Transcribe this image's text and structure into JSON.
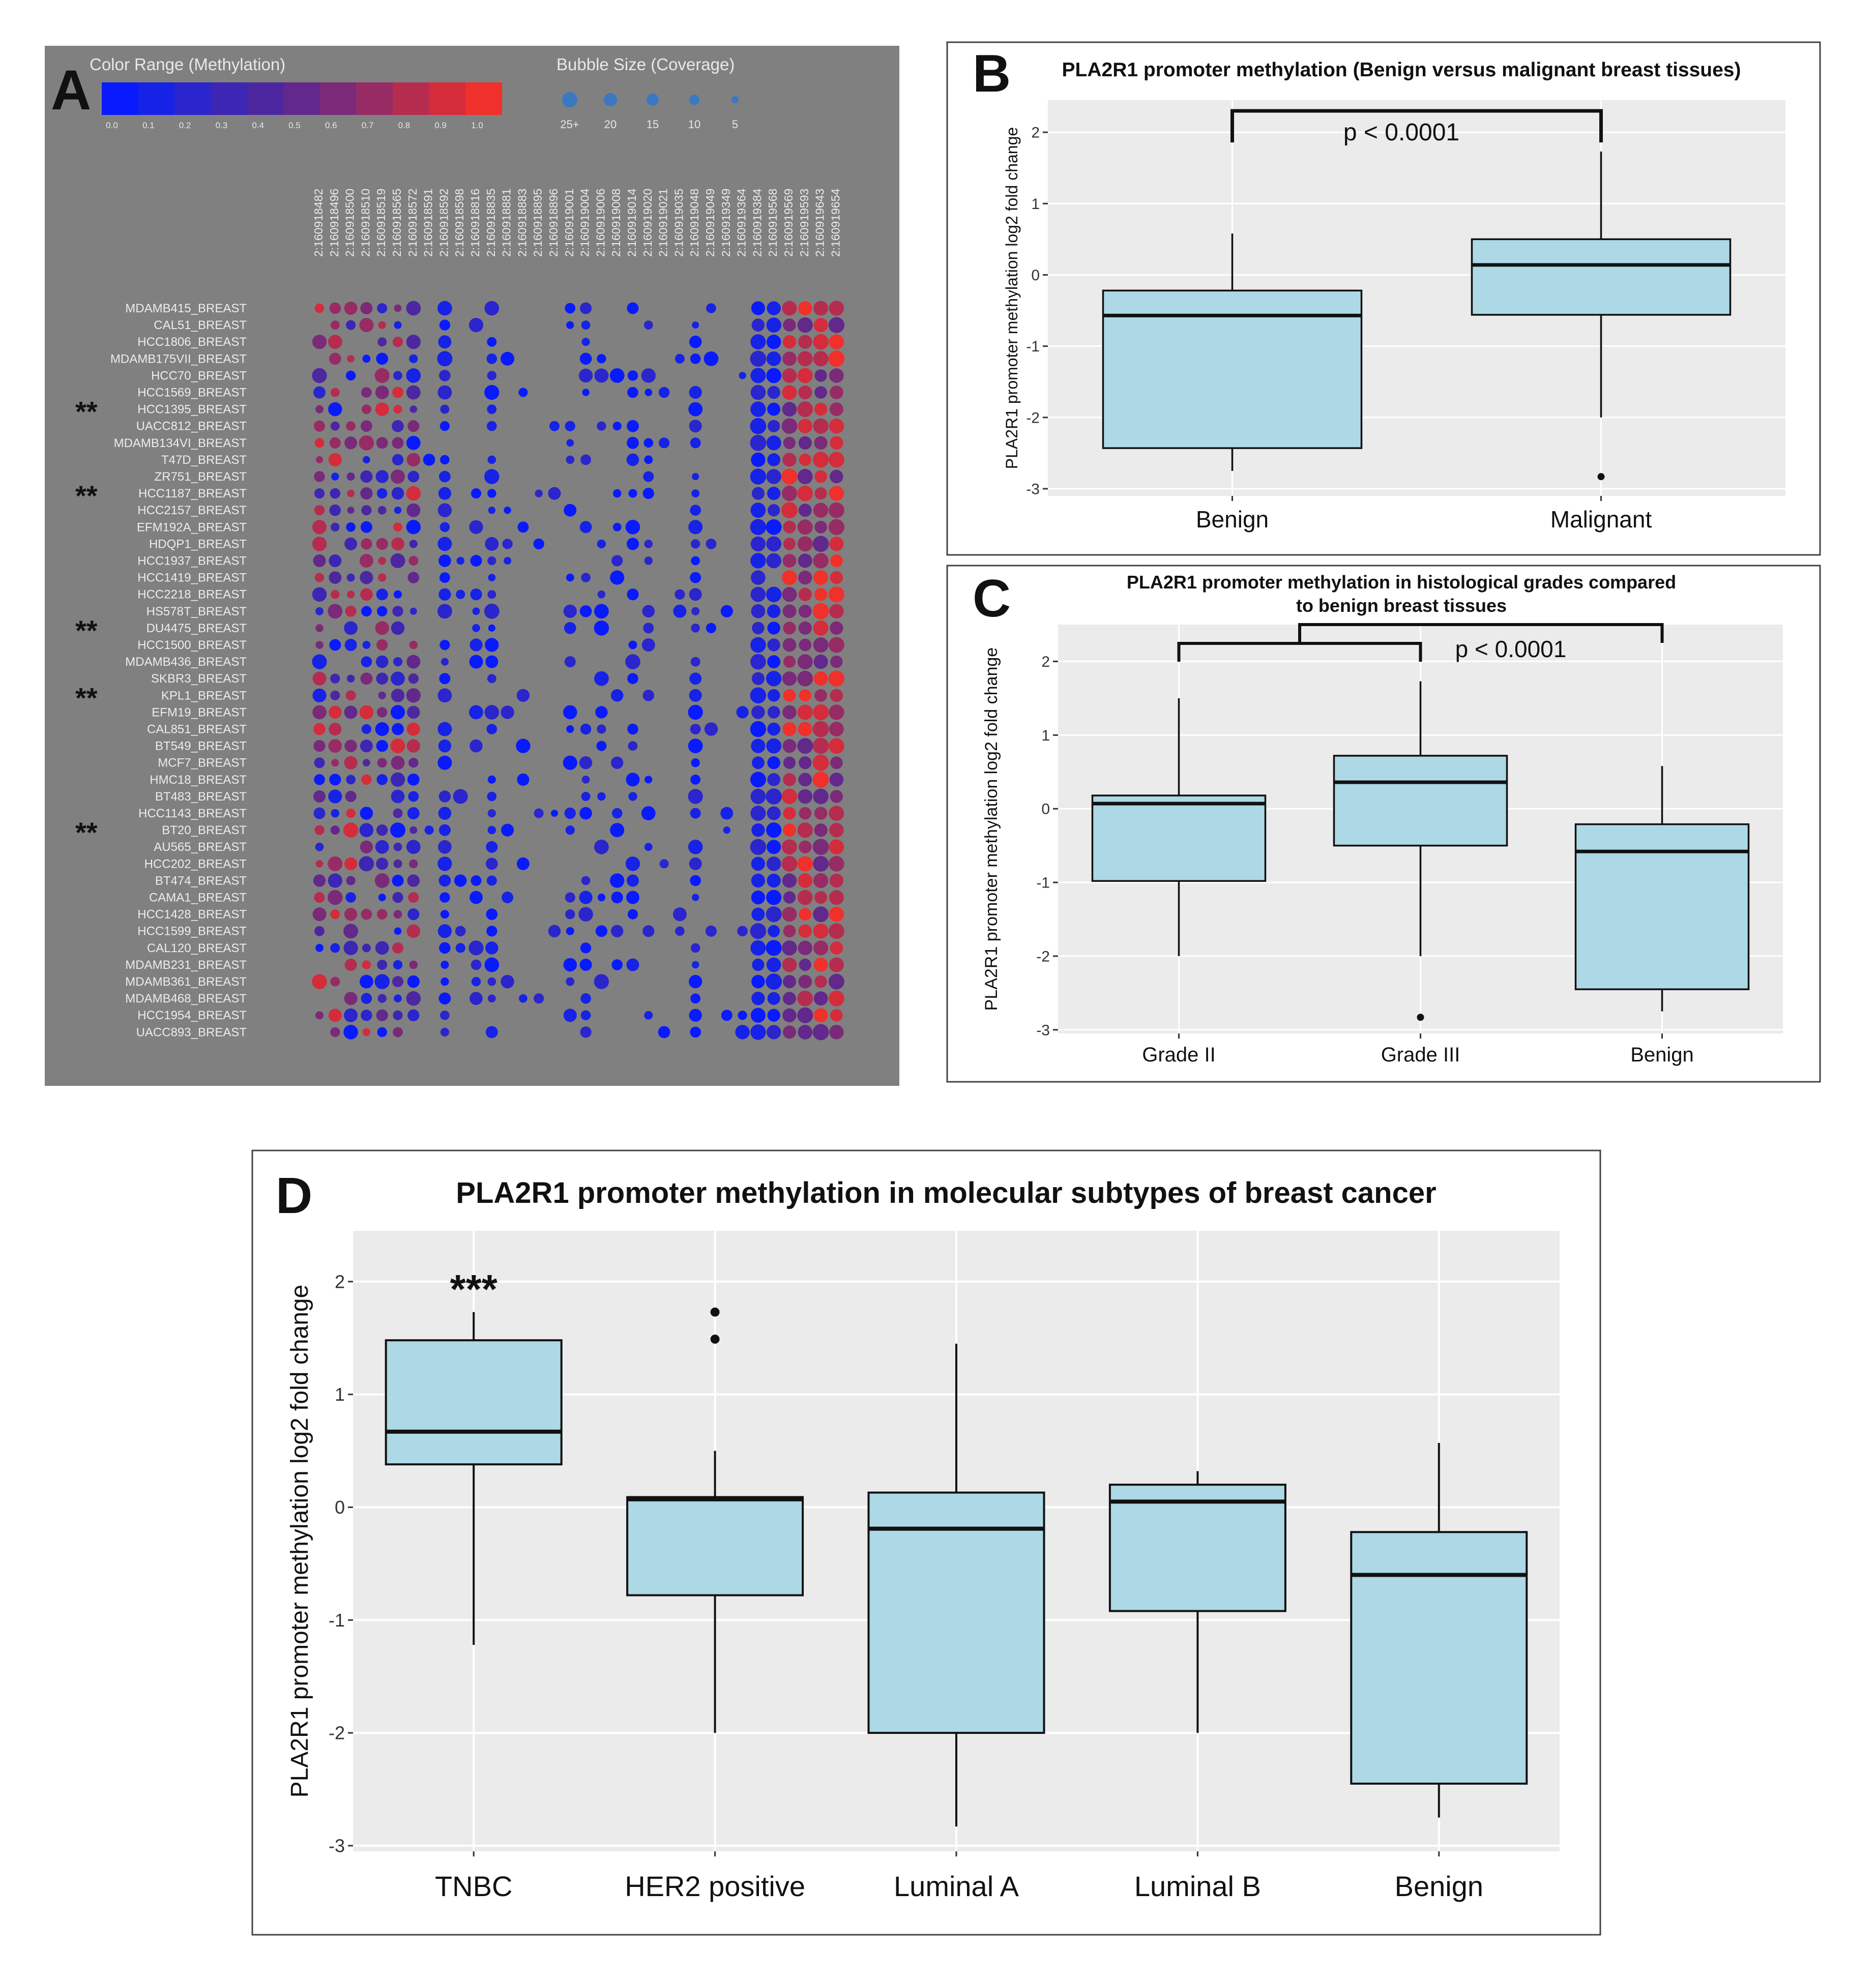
{
  "panel_labels": {
    "A": "A",
    "B": "B",
    "C": "C",
    "D": "D"
  },
  "panel_a": {
    "color_range_title": "Color Range (Methylation)",
    "color_ticks": [
      "0.0",
      "0.1",
      "0.2",
      "0.3",
      "0.4",
      "0.5",
      "0.6",
      "0.7",
      "0.8",
      "0.9",
      "1.0"
    ],
    "color_scale": [
      "#0a1aff",
      "#1622e6",
      "#2a25cc",
      "#3c26b3",
      "#4d27a0",
      "#62288c",
      "#7a2a78",
      "#972c64",
      "#b52c4f",
      "#d42c3b",
      "#f0302a"
    ],
    "bubble_title": "Bubble Size (Coverage)",
    "bubble_labels": [
      "25+",
      "20",
      "15",
      "10",
      "5"
    ],
    "marker": "**"
  },
  "chart_data": [
    {
      "panel": "A",
      "type": "heatmap",
      "title": "Color Range (Methylation)",
      "columns": [
        "2:160918482",
        "2:160918496",
        "2:160918500",
        "2:160918510",
        "2:160918519",
        "2:160918565",
        "2:160918572",
        "2:160918591",
        "2:160918592",
        "2:160918598",
        "2:160918816",
        "2:160918835",
        "2:160918881",
        "2:160918883",
        "2:160918895",
        "2:160918896",
        "2:160919001",
        "2:160919004",
        "2:160919006",
        "2:160919008",
        "2:160919014",
        "2:160919020",
        "2:160919021",
        "2:160919035",
        "2:160919048",
        "2:160919049",
        "2:160919349",
        "2:160919364",
        "2:160919384",
        "2:160919568",
        "2:160919569",
        "2:160919593",
        "2:160919643",
        "2:160919654"
      ],
      "rows": [
        "MDAMB415_BREAST",
        "CAL51_BREAST",
        "HCC1806_BREAST",
        "MDAMB175VII_BREAST",
        "HCC70_BREAST",
        "HCC1569_BREAST",
        "HCC1395_BREAST",
        "UACC812_BREAST",
        "MDAMB134VI_BREAST",
        "T47D_BREAST",
        "ZR751_BREAST",
        "HCC1187_BREAST",
        "HCC2157_BREAST",
        "EFM192A_BREAST",
        "HDQP1_BREAST",
        "HCC1937_BREAST",
        "HCC1419_BREAST",
        "HCC2218_BREAST",
        "HS578T_BREAST",
        "DU4475_BREAST",
        "HCC1500_BREAST",
        "MDAMB436_BREAST",
        "SKBR3_BREAST",
        "KPL1_BREAST",
        "EFM19_BREAST",
        "CAL851_BREAST",
        "BT549_BREAST",
        "MCF7_BREAST",
        "HMC18_BREAST",
        "BT483_BREAST",
        "HCC1143_BREAST",
        "BT20_BREAST",
        "AU565_BREAST",
        "HCC202_BREAST",
        "BT474_BREAST",
        "CAMA1_BREAST",
        "HCC1428_BREAST",
        "HCC1599_BREAST",
        "CAL120_BREAST",
        "MDAMB231_BREAST",
        "MDAMB361_BREAST",
        "MDAMB468_BREAST",
        "HCC1954_BREAST",
        "UACC893_BREAST"
      ],
      "marked_rows": [
        "HCC1395_BREAST",
        "HCC1187_BREAST",
        "DU4475_BREAST",
        "KPL1_BREAST",
        "BT20_BREAST"
      ],
      "value_range": [
        0,
        1
      ]
    },
    {
      "panel": "B",
      "type": "box",
      "title": "PLA2R1 promoter methylation (Benign versus malignant breast tissues)",
      "ylabel": "PLA2R1 promoter methylation log2 fold change",
      "ylim": [
        -3.1,
        2.45
      ],
      "yticks": [
        -3,
        -2,
        -1,
        0,
        1,
        2
      ],
      "annotation": "p < 0.0001",
      "groups": [
        {
          "name": "Benign",
          "min": -2.75,
          "q1": -2.43,
          "median": -0.57,
          "q3": -0.22,
          "max": 0.58,
          "outliers": []
        },
        {
          "name": "Malignant",
          "min": -2.0,
          "q1": -0.56,
          "median": 0.14,
          "q3": 0.5,
          "max": 1.73,
          "outliers": [
            -2.83
          ]
        }
      ]
    },
    {
      "panel": "C",
      "type": "box",
      "title": "PLA2R1 promoter methylation in histological grades compared",
      "title_line2": "to benign breast tissues",
      "ylabel": "PLA2R1 promoter methylation log2 fold change",
      "ylim": [
        -3.05,
        2.5
      ],
      "yticks": [
        -3,
        -2,
        -1,
        0,
        1,
        2
      ],
      "annotation": "p < 0.0001",
      "groups": [
        {
          "name": "Grade II",
          "min": -2.0,
          "q1": -0.98,
          "median": 0.07,
          "q3": 0.18,
          "max": 1.5,
          "outliers": []
        },
        {
          "name": "Grade III",
          "min": -2.0,
          "q1": -0.5,
          "median": 0.36,
          "q3": 0.72,
          "max": 1.73,
          "outliers": [
            -2.83
          ]
        },
        {
          "name": "Benign",
          "min": -2.75,
          "q1": -2.45,
          "median": -0.58,
          "q3": -0.21,
          "max": 0.58,
          "outliers": []
        }
      ]
    },
    {
      "panel": "D",
      "type": "box",
      "title": "PLA2R1 promoter methylation in molecular subtypes of breast cancer",
      "ylabel": "PLA2R1 promoter methylation log2 fold change",
      "ylim": [
        -3.05,
        2.45
      ],
      "yticks": [
        -3,
        -2,
        -1,
        0,
        1,
        2
      ],
      "annotation": "***",
      "groups": [
        {
          "name": "TNBC",
          "min": -1.22,
          "q1": 0.38,
          "median": 0.67,
          "q3": 1.48,
          "max": 1.73,
          "outliers": []
        },
        {
          "name": "HER2 positive",
          "min": -2.0,
          "q1": -0.78,
          "median": 0.07,
          "q3": 0.09,
          "max": 0.5,
          "outliers": [
            1.49,
            1.73
          ]
        },
        {
          "name": "Luminal A",
          "min": -2.83,
          "q1": -2.0,
          "median": -0.19,
          "q3": 0.13,
          "max": 1.45,
          "outliers": []
        },
        {
          "name": "Luminal B",
          "min": -2.0,
          "q1": -0.92,
          "median": 0.05,
          "q3": 0.2,
          "max": 0.32,
          "outliers": []
        },
        {
          "name": "Benign",
          "min": -2.75,
          "q1": -2.45,
          "median": -0.6,
          "q3": -0.22,
          "max": 0.57,
          "outliers": []
        }
      ]
    }
  ]
}
